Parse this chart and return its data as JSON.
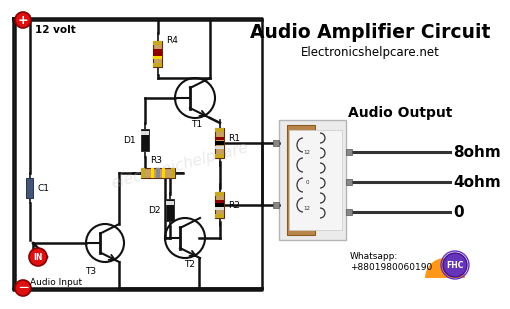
{
  "title": "Audio Amplifier Circuit",
  "subtitle": "Electronicshelpcare.net",
  "bg_color": "#ffffff",
  "voltage_label": "12 volt",
  "plus_circle_color": "#dd1111",
  "minus_circle_color": "#dd1111",
  "in_circle_color": "#dd1111",
  "audio_input_label": "Audio Input",
  "audio_output_label": "Audio Output",
  "output_8ohm": "8ohm",
  "output_4ohm": "4ohm",
  "output_0": "0",
  "whatsapp_label": "Whatsapp:\n+8801980060190",
  "fhc_logo_color": "#ff8c00",
  "fhc_circle_color": "#6633cc",
  "wire_color": "#111111",
  "resistor_body": "#c8a060",
  "resistor_edge": "#5a3010",
  "diode_body": "#111111",
  "transistor_color": "#111111",
  "watermark_color": "#cccccc",
  "watermark_text": "electronichelpcare"
}
